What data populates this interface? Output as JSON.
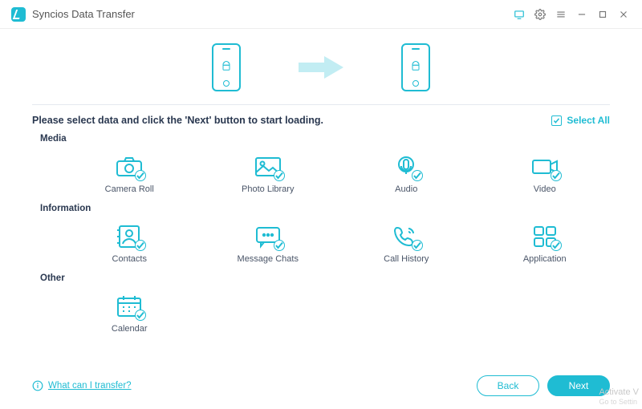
{
  "window": {
    "title": "Syncios Data Transfer",
    "accent": "#1fbcd3",
    "background": "#ffffff"
  },
  "titlebar_icons": [
    "screen-icon",
    "gear-icon",
    "menu-icon",
    "minimize-icon",
    "maximize-icon",
    "close-icon"
  ],
  "instruction": "Please select data and click the 'Next' button to start loading.",
  "select_all": {
    "label": "Select All",
    "checked": true
  },
  "sections": [
    {
      "label": "Media",
      "items": [
        {
          "key": "camera_roll",
          "label": "Camera Roll",
          "icon": "camera",
          "checked": true
        },
        {
          "key": "photo_library",
          "label": "Photo Library",
          "icon": "photo",
          "checked": true
        },
        {
          "key": "audio",
          "label": "Audio",
          "icon": "mic",
          "checked": true
        },
        {
          "key": "video",
          "label": "Video",
          "icon": "video",
          "checked": true
        }
      ]
    },
    {
      "label": "Information",
      "items": [
        {
          "key": "contacts",
          "label": "Contacts",
          "icon": "contacts",
          "checked": true
        },
        {
          "key": "messages",
          "label": "Message Chats",
          "icon": "chat",
          "checked": true
        },
        {
          "key": "call_history",
          "label": "Call History",
          "icon": "call",
          "checked": true
        },
        {
          "key": "application",
          "label": "Application",
          "icon": "apps",
          "checked": true
        }
      ]
    },
    {
      "label": "Other",
      "items": [
        {
          "key": "calendar",
          "label": "Calendar",
          "icon": "calendar",
          "checked": true
        }
      ]
    }
  ],
  "help": {
    "label": "What can I transfer?"
  },
  "buttons": {
    "back": "Back",
    "next": "Next"
  },
  "watermark": {
    "line1": "Activate V",
    "line2": "Go to Settin"
  }
}
